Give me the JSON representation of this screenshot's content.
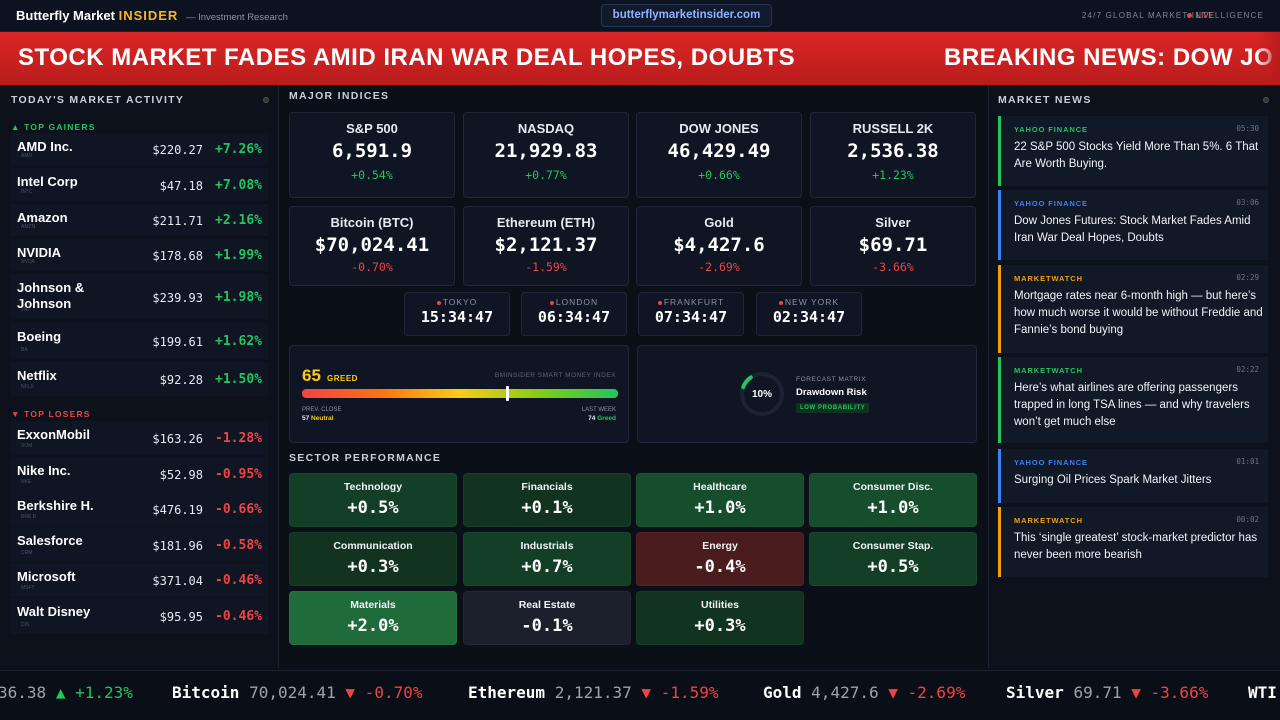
{
  "header": {
    "brand_main": "Butterfly Market",
    "brand_accent": "INSIDER",
    "brand_sub": "— Investment Research",
    "url": "butterflymarketinsider.com",
    "live": "LIVE",
    "tagline": "24/7 GLOBAL MARKET INTELLIGENCE"
  },
  "breaking": {
    "headline1": "STOCK MARKET FADES AMID IRAN WAR DEAL HOPES, DOUBTS",
    "headline2": "BREAKING NEWS: DOW JO"
  },
  "left": {
    "title": "TODAY'S MARKET ACTIVITY",
    "gainers_label": "▲ TOP GAINERS",
    "losers_label": "▼ TOP LOSERS",
    "gainers": [
      {
        "name": "AMD Inc.",
        "ticker": "AMD",
        "price": "$220.27",
        "change": "+7.26%"
      },
      {
        "name": "Intel Corp",
        "ticker": "INTC",
        "price": "$47.18",
        "change": "+7.08%"
      },
      {
        "name": "Amazon",
        "ticker": "AMZN",
        "price": "$211.71",
        "change": "+2.16%"
      },
      {
        "name": "NVIDIA",
        "ticker": "NVDA",
        "price": "$178.68",
        "change": "+1.99%"
      },
      {
        "name": "Johnson & Johnson",
        "ticker": "JNJ",
        "price": "$239.93",
        "change": "+1.98%"
      },
      {
        "name": "Boeing",
        "ticker": "BA",
        "price": "$199.61",
        "change": "+1.62%"
      },
      {
        "name": "Netflix",
        "ticker": "NFLX",
        "price": "$92.28",
        "change": "+1.50%"
      }
    ],
    "losers": [
      {
        "name": "ExxonMobil",
        "ticker": "XOM",
        "price": "$163.26",
        "change": "-1.28%"
      },
      {
        "name": "Nike Inc.",
        "ticker": "NKE",
        "price": "$52.98",
        "change": "-0.95%"
      },
      {
        "name": "Berkshire H.",
        "ticker": "BRK.B",
        "price": "$476.19",
        "change": "-0.66%"
      },
      {
        "name": "Salesforce",
        "ticker": "CRM",
        "price": "$181.96",
        "change": "-0.58%"
      },
      {
        "name": "Microsoft",
        "ticker": "MSFT",
        "price": "$371.04",
        "change": "-0.46%"
      },
      {
        "name": "Walt Disney",
        "ticker": "DIS",
        "price": "$95.95",
        "change": "-0.46%"
      }
    ]
  },
  "indices": {
    "title": "MAJOR INDICES",
    "cards": [
      {
        "name": "S&P 500",
        "value": "6,591.9",
        "change": "+0.54%",
        "dir": "pos"
      },
      {
        "name": "NASDAQ",
        "value": "21,929.83",
        "change": "+0.77%",
        "dir": "pos"
      },
      {
        "name": "DOW JONES",
        "value": "46,429.49",
        "change": "+0.66%",
        "dir": "pos"
      },
      {
        "name": "RUSSELL 2K",
        "value": "2,536.38",
        "change": "+1.23%",
        "dir": "pos"
      },
      {
        "name": "Bitcoin (BTC)",
        "value": "$70,024.41",
        "change": "-0.70%",
        "dir": "neg"
      },
      {
        "name": "Ethereum (ETH)",
        "value": "$2,121.37",
        "change": "-1.59%",
        "dir": "neg"
      },
      {
        "name": "Gold",
        "value": "$4,427.6",
        "change": "-2.69%",
        "dir": "neg"
      },
      {
        "name": "Silver",
        "value": "$69.71",
        "change": "-3.66%",
        "dir": "neg"
      }
    ]
  },
  "clocks": [
    {
      "city": "TOKYO",
      "time": "15:34:47"
    },
    {
      "city": "LONDON",
      "time": "06:34:47"
    },
    {
      "city": "FRANKFURT",
      "time": "07:34:47"
    },
    {
      "city": "NEW YORK",
      "time": "02:34:47"
    }
  ],
  "greed": {
    "value": "65",
    "level": 0.65,
    "label": "GREED",
    "title": "BMINSIDER SMART MONEY INDEX",
    "prev_label": "PREV. CLOSE",
    "prev_value": "57",
    "prev_state": "Neutral",
    "week_label": "LAST WEEK",
    "week_value": "74",
    "week_state": "Greed"
  },
  "forecast": {
    "pct": "10%",
    "level": 0.1,
    "label": "FORECAST MATRIX",
    "title": "Drawdown Risk",
    "badge": "LOW PROBABILITY"
  },
  "sectors": {
    "title": "SECTOR PERFORMANCE",
    "tiles": [
      {
        "name": "Technology",
        "value": "+0.5%"
      },
      {
        "name": "Financials",
        "value": "+0.1%"
      },
      {
        "name": "Healthcare",
        "value": "+1.0%"
      },
      {
        "name": "Consumer Disc.",
        "value": "+1.0%"
      },
      {
        "name": "Communication",
        "value": "+0.3%"
      },
      {
        "name": "Industrials",
        "value": "+0.7%"
      },
      {
        "name": "Energy",
        "value": "-0.4%"
      },
      {
        "name": "Consumer Stap.",
        "value": "+0.5%"
      },
      {
        "name": "Materials",
        "value": "+2.0%"
      },
      {
        "name": "Real Estate",
        "value": "-0.1%"
      },
      {
        "name": "Utilities",
        "value": "+0.3%"
      }
    ]
  },
  "news": {
    "title": "MARKET NEWS",
    "items": [
      {
        "source": "YAHOO FINANCE",
        "time": "05:30",
        "headline": "22 S&P 500 Stocks Yield More Than 5%. 6 That Are Worth Buying.",
        "color": "#22c55e"
      },
      {
        "source": "YAHOO FINANCE",
        "time": "03:06",
        "headline": "Dow Jones Futures: Stock Market Fades Amid Iran War Deal Hopes, Doubts",
        "color": "#3b82f6"
      },
      {
        "source": "MARKETWATCH",
        "time": "02:29",
        "headline": "Mortgage rates near 6-month high — but here’s how much worse it would be without Freddie and Fannie’s bond buying",
        "color": "#f59e0b"
      },
      {
        "source": "MARKETWATCH",
        "time": "02:22",
        "headline": "Here’s what airlines are offering passengers trapped in long TSA lines — and why travelers won’t get much else",
        "color": "#22c55e"
      },
      {
        "source": "YAHOO FINANCE",
        "time": "01:01",
        "headline": "Surging Oil Prices Spark Market Jitters",
        "color": "#3b82f6"
      },
      {
        "source": "MARKETWATCH",
        "time": "00:02",
        "headline": "This ‘single greatest’ stock-market predictor has never been more bearish",
        "color": "#f59e0b"
      }
    ]
  },
  "ticker": [
    {
      "name": "",
      "price": "36.38",
      "arrow": "▲",
      "change": "+1.23%",
      "dir": "pos"
    },
    {
      "name": "Bitcoin",
      "price": "70,024.41",
      "arrow": "▼",
      "change": "-0.70%",
      "dir": "neg"
    },
    {
      "name": "Ethereum",
      "price": "2,121.37",
      "arrow": "▼",
      "change": "-1.59%",
      "dir": "neg"
    },
    {
      "name": "Gold",
      "price": "4,427.6",
      "arrow": "▼",
      "change": "-2.69%",
      "dir": "neg"
    },
    {
      "name": "Silver",
      "price": "69.71",
      "arrow": "▼",
      "change": "-3.66%",
      "dir": "neg"
    },
    {
      "name": "WTI",
      "price": "",
      "arrow": "",
      "change": "",
      "dir": "pos"
    }
  ],
  "colors": {
    "positive": "#22c55e",
    "negative": "#ef4444",
    "accent": "#f5b728",
    "breaking_bg": "#dc2626"
  }
}
